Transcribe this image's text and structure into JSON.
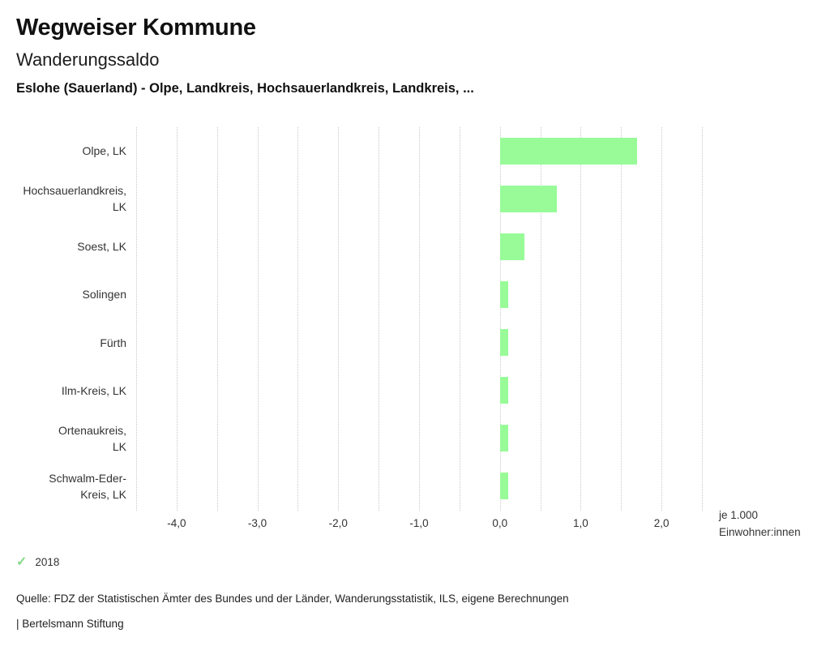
{
  "header": {
    "title": "Wegweiser Kommune",
    "subtitle": "Wanderungssaldo",
    "context": "Eslohe (Sauerland) - Olpe, Landkreis, Hochsauerlandkreis, Landkreis, ..."
  },
  "chart_data": {
    "type": "bar",
    "orientation": "horizontal",
    "title": "Wanderungssaldo",
    "categories": [
      "Olpe, LK",
      "Hochsauerlandkreis,\nLK",
      "Soest, LK",
      "Solingen",
      "Fürth",
      "Ilm-Kreis, LK",
      "Ortenaukreis,\nLK",
      "Schwalm-Eder-\nKreis, LK"
    ],
    "series": [
      {
        "name": "2018",
        "values": [
          1.7,
          0.7,
          0.3,
          0.1,
          0.1,
          0.1,
          0.1,
          0.1
        ]
      }
    ],
    "xlim": [
      -4.5,
      2.5
    ],
    "grid_step": 0.5,
    "grid": true,
    "x_ticks": [
      {
        "value": -4,
        "label": "-4,0"
      },
      {
        "value": -3,
        "label": "-3,0"
      },
      {
        "value": -2,
        "label": "-2,0"
      },
      {
        "value": -1,
        "label": "-1,0"
      },
      {
        "value": 0,
        "label": "0,0"
      },
      {
        "value": 1,
        "label": "1,0"
      },
      {
        "value": 2,
        "label": "2,0"
      }
    ],
    "unit_label": "je 1.000\nEinwohner:innen",
    "legend_position": "bottom-left",
    "colors": {
      "bar": "#98fb98",
      "grid": "#c8c8c8",
      "check": "#86d986",
      "text": "#333333"
    }
  },
  "icons": {
    "check": "✓"
  },
  "footer": {
    "source": "Quelle: FDZ der Statistischen Ämter des Bundes und der Länder, Wanderungsstatistik, ILS, eigene Berechnungen",
    "brand": "| Bertelsmann Stiftung"
  }
}
